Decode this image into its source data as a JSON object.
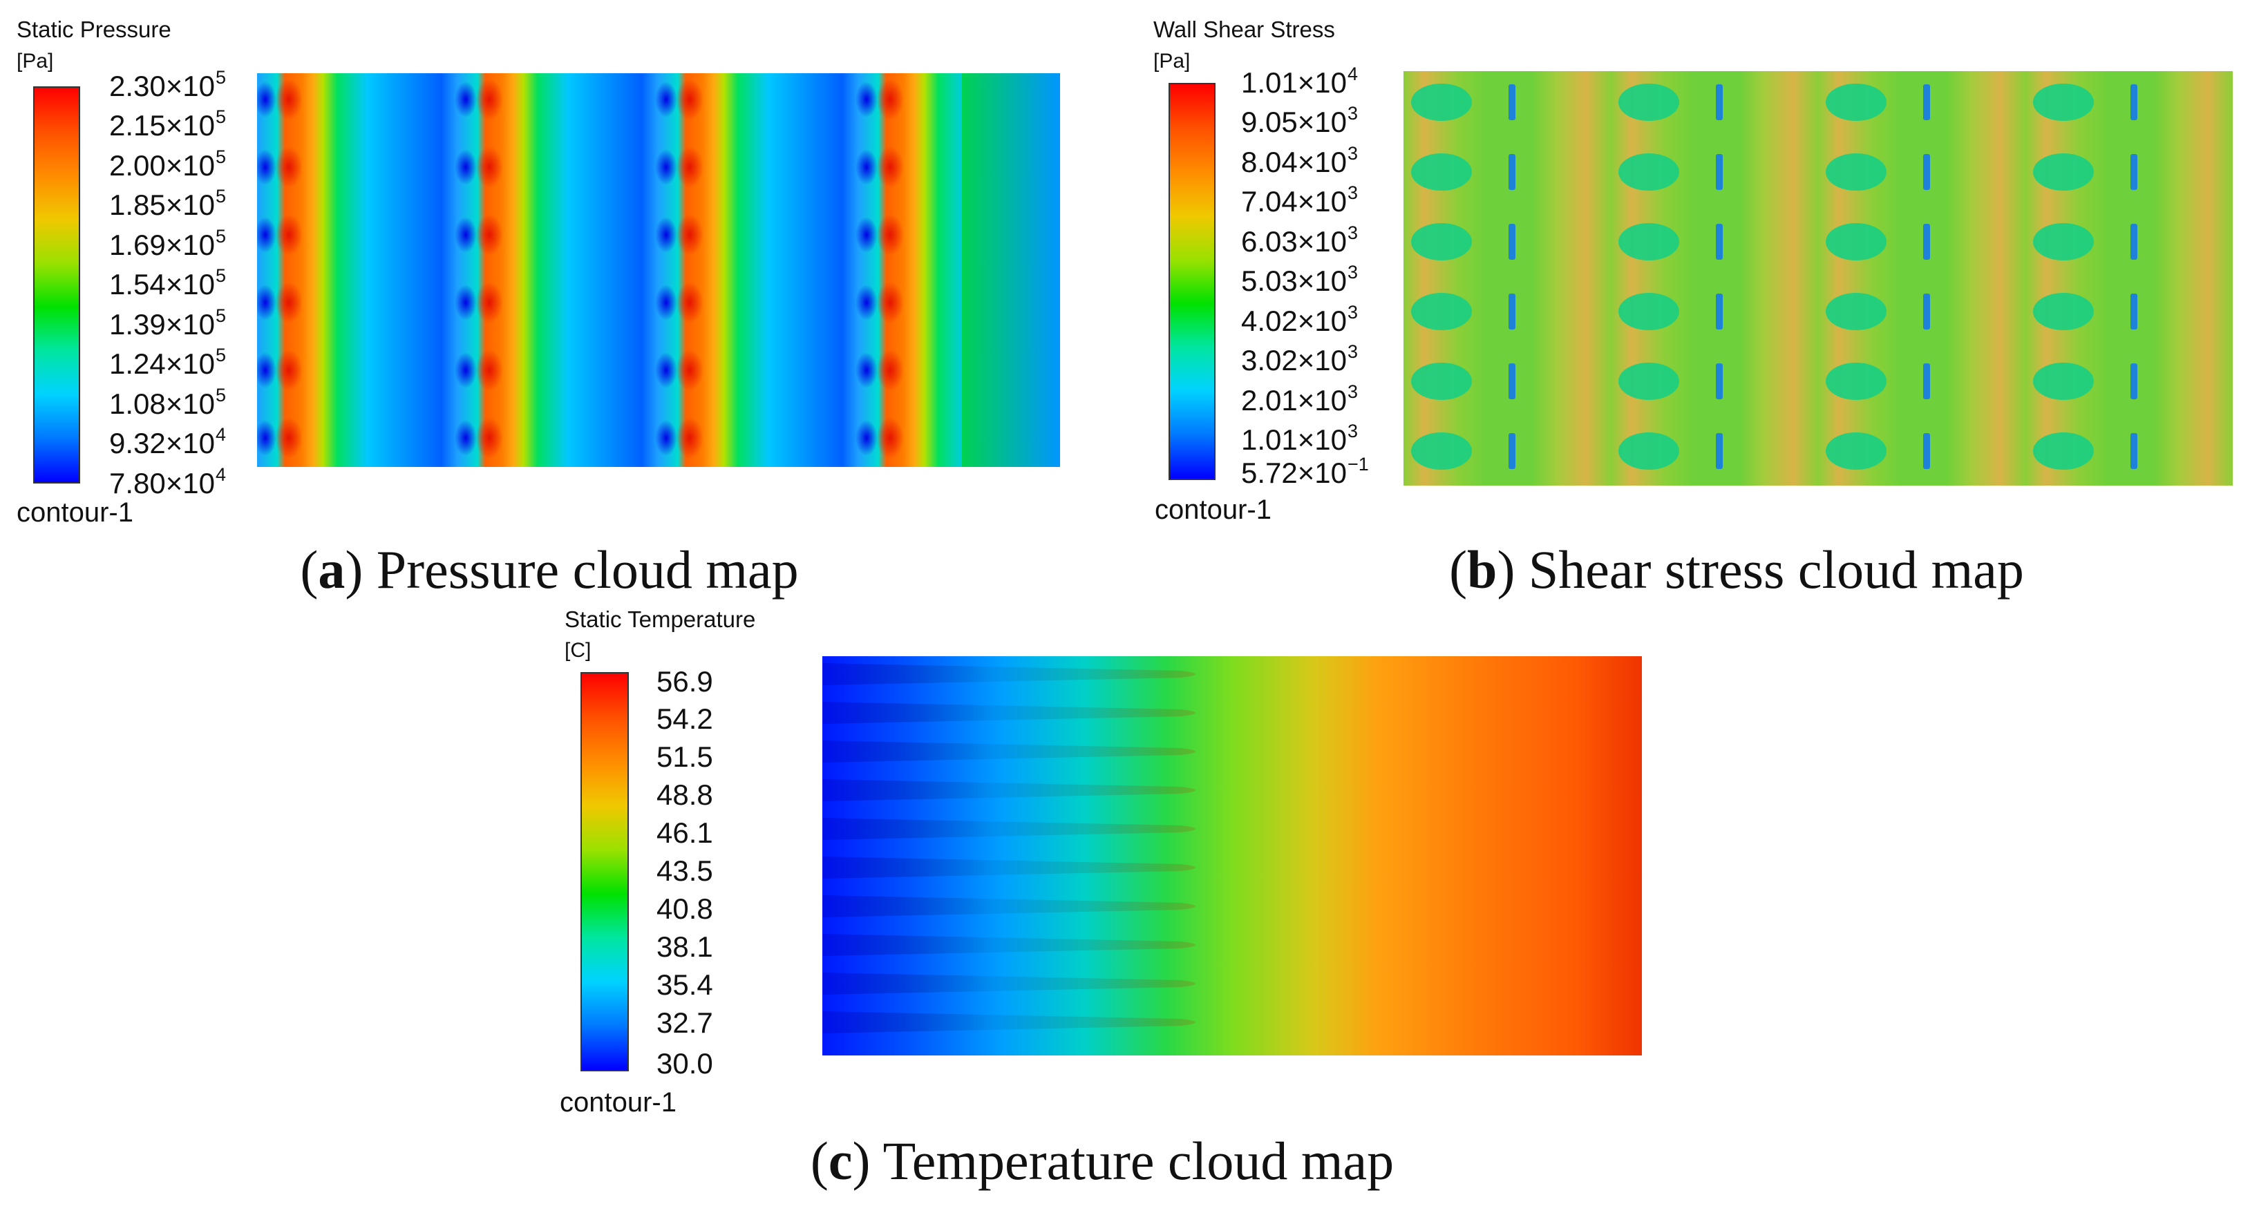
{
  "panels": [
    {
      "id": "a",
      "legend_title": "Static Pressure",
      "legend_unit": "[Pa]",
      "legend_footer": "contour-1",
      "ticks": [
        {
          "m": "2.30",
          "e": "5"
        },
        {
          "m": "2.15",
          "e": "5"
        },
        {
          "m": "2.00",
          "e": "5"
        },
        {
          "m": "1.85",
          "e": "5"
        },
        {
          "m": "1.69",
          "e": "5"
        },
        {
          "m": "1.54",
          "e": "5"
        },
        {
          "m": "1.39",
          "e": "5"
        },
        {
          "m": "1.24",
          "e": "5"
        },
        {
          "m": "1.08",
          "e": "5"
        },
        {
          "m": "9.32",
          "e": "4"
        },
        {
          "m": "7.80",
          "e": "4"
        }
      ],
      "caption_letter": "a",
      "caption_text": "Pressure cloud map"
    },
    {
      "id": "b",
      "legend_title": "Wall Shear Stress",
      "legend_unit": "[Pa]",
      "legend_footer": "contour-1",
      "ticks": [
        {
          "m": "1.01",
          "e": "4"
        },
        {
          "m": "9.05",
          "e": "3"
        },
        {
          "m": "8.04",
          "e": "3"
        },
        {
          "m": "7.04",
          "e": "3"
        },
        {
          "m": "6.03",
          "e": "3"
        },
        {
          "m": "5.03",
          "e": "3"
        },
        {
          "m": "4.02",
          "e": "3"
        },
        {
          "m": "3.02",
          "e": "3"
        },
        {
          "m": "2.01",
          "e": "3"
        },
        {
          "m": "1.01",
          "e": "3"
        },
        {
          "m": "5.72",
          "e": "−1"
        }
      ],
      "caption_letter": "b",
      "caption_text": "Shear stress cloud map"
    },
    {
      "id": "c",
      "legend_title": "Static Temperature",
      "legend_unit": "[C]",
      "legend_footer": "contour-1",
      "ticks": [
        {
          "m": "56.9"
        },
        {
          "m": "54.2"
        },
        {
          "m": "51.5"
        },
        {
          "m": "48.8"
        },
        {
          "m": "46.1"
        },
        {
          "m": "43.5"
        },
        {
          "m": "40.8"
        },
        {
          "m": "38.1"
        },
        {
          "m": "35.4"
        },
        {
          "m": "32.7"
        },
        {
          "m": "30.0"
        }
      ],
      "caption_letter": "c",
      "caption_text": "Temperature cloud map"
    }
  ],
  "colors": {
    "colormap": [
      "#0000ff",
      "#0078ff",
      "#00d2ff",
      "#00e6a0",
      "#00e100",
      "#9be100",
      "#f0c800",
      "#ff8c00",
      "#ff5000",
      "#ff0000"
    ],
    "shear_field": "#6ed03a",
    "shear_band": "#d6b446",
    "shear_blob": "#1fcf7e",
    "shear_bar": "#1e82d8"
  }
}
